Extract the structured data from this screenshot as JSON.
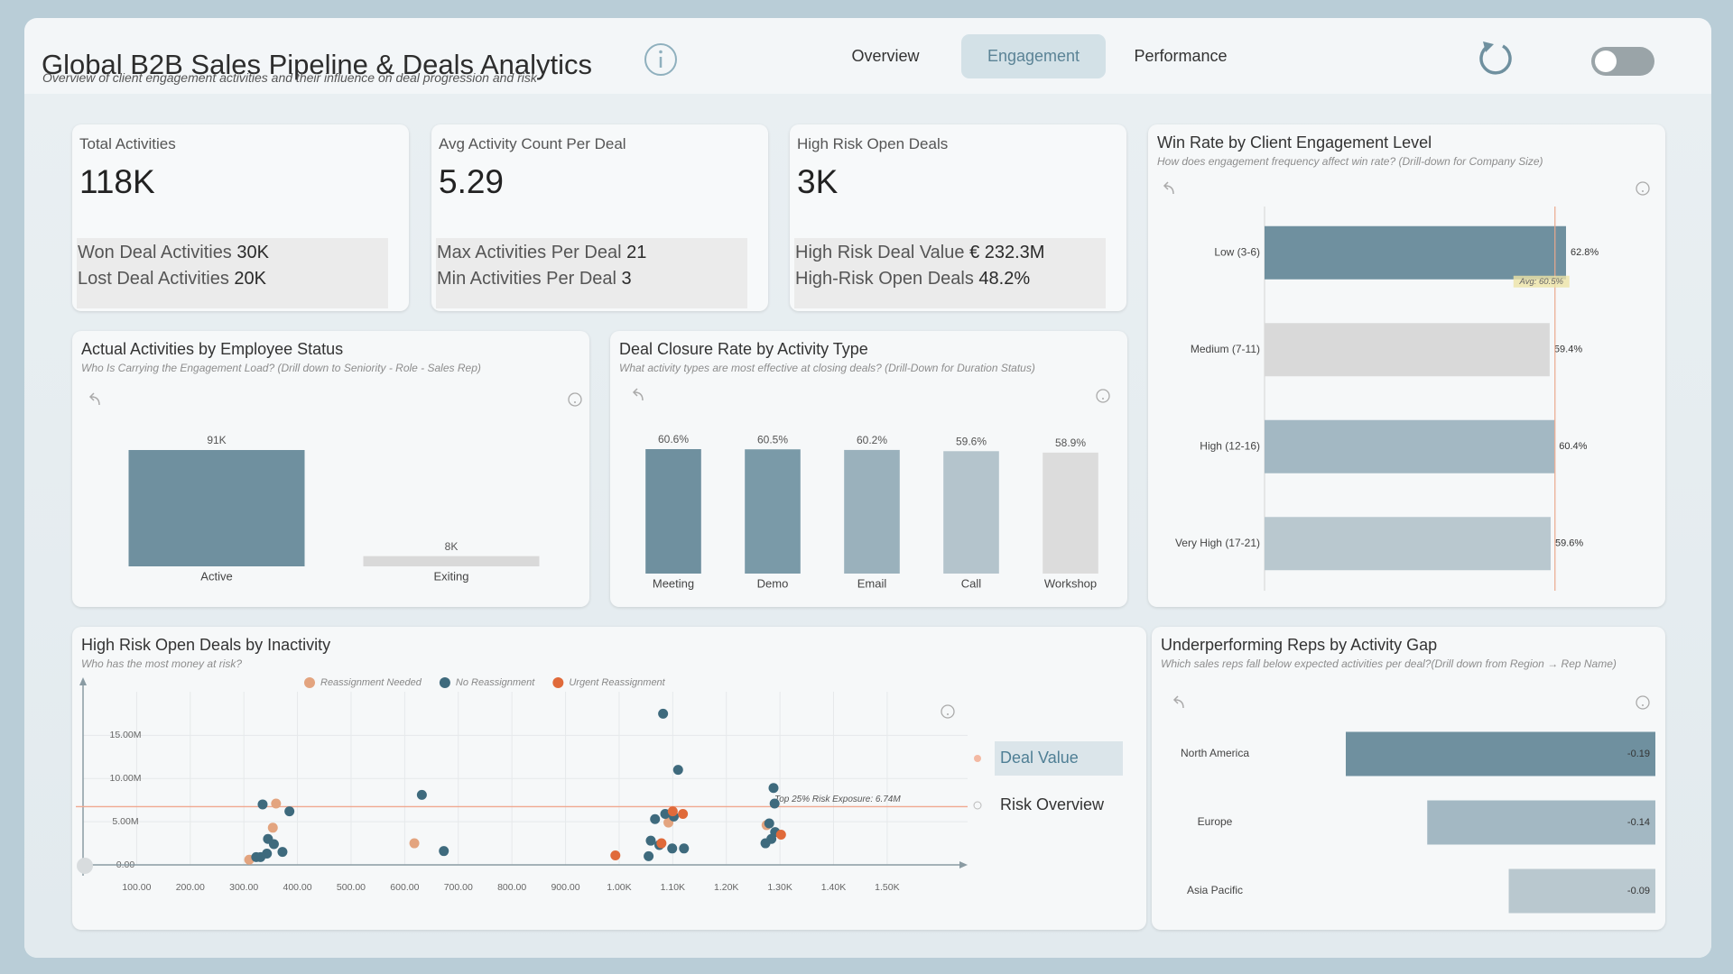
{
  "header": {
    "title": "Global B2B Sales Pipeline & Deals Analytics",
    "subtitle": "Overview of client engagement activities and their influence on deal progression and risk"
  },
  "nav": {
    "tabs": [
      "Overview",
      "Engagement",
      "Performance"
    ],
    "active": 1
  },
  "kpi_cards": [
    {
      "label": "Total Activities",
      "value": "118K",
      "details": [
        {
          "label": "Won Deal Activities",
          "value": "30K"
        },
        {
          "label": "Lost Deal Activities",
          "value": "20K"
        }
      ]
    },
    {
      "label": "Avg Activity Count Per Deal",
      "value": "5.29",
      "details": [
        {
          "label": "Max Activities Per Deal",
          "value": "21"
        },
        {
          "label": "Min Activities Per Deal",
          "value": "3"
        }
      ]
    },
    {
      "label": "High Risk Open Deals",
      "value": "3K",
      "details": [
        {
          "label": "High Risk Deal Value",
          "value": "€ 232.3M"
        },
        {
          "label": "High-Risk Open Deals",
          "value": "48.2%"
        }
      ]
    }
  ],
  "chart_data": [
    {
      "type": "bar",
      "title": "Actual Activities by Employee Status",
      "subtitle": "Who Is Carrying the Engagement Load? (Drill down to Seniority - Role - Sales Rep)",
      "categories": [
        "Active",
        "Exiting"
      ],
      "values": [
        91000,
        8000
      ],
      "value_labels": [
        "91K",
        "8K"
      ],
      "colors": [
        "#6f909f",
        "#d9d9d9"
      ]
    },
    {
      "type": "bar",
      "title": "Deal Closure Rate by Activity Type",
      "subtitle": "What activity types are most effective at closing deals? (Drill-Down for Duration Status)",
      "categories": [
        "Meeting",
        "Demo",
        "Email",
        "Call",
        "Workshop"
      ],
      "values": [
        60.6,
        60.5,
        60.2,
        59.6,
        58.9
      ],
      "value_labels": [
        "60.6%",
        "60.5%",
        "60.2%",
        "59.6%",
        "58.9%"
      ],
      "colors": [
        "#6f909f",
        "#7a9aa8",
        "#9ab1bc",
        "#b4c4cc",
        "#dcdcdc"
      ]
    },
    {
      "type": "hbar",
      "title": "Win Rate by Client Engagement Level",
      "subtitle": "How does engagement frequency affect win rate? (Drill-down for Company Size)",
      "categories": [
        "Low (3-6)",
        "Medium (7-11)",
        "High (12-16)",
        "Very High (17-21)"
      ],
      "values": [
        62.8,
        59.4,
        60.4,
        59.6
      ],
      "value_labels": [
        "62.8%",
        "59.4%",
        "60.4%",
        "59.6%"
      ],
      "colors": [
        "#6f909f",
        "#d9d9d9",
        "#a3b8c3",
        "#b9c8cf"
      ],
      "average": 60.5,
      "average_label": "Avg: 60.5%"
    },
    {
      "type": "scatter",
      "title": "High Risk Open Deals by Inactivity",
      "subtitle": "Who has the most money at risk?",
      "xlim": [
        0,
        1650
      ],
      "ylim": [
        0,
        19000000
      ],
      "grid": true,
      "xticks": [
        {
          "value": 100,
          "label": "100.00"
        },
        {
          "value": 200,
          "label": "200.00"
        },
        {
          "value": 300,
          "label": "300.00"
        },
        {
          "value": 400,
          "label": "400.00"
        },
        {
          "value": 500,
          "label": "500.00"
        },
        {
          "value": 600,
          "label": "600.00"
        },
        {
          "value": 700,
          "label": "700.00"
        },
        {
          "value": 800,
          "label": "800.00"
        },
        {
          "value": 900,
          "label": "900.00"
        },
        {
          "value": 1000,
          "label": "1.00K"
        },
        {
          "value": 1100,
          "label": "1.10K"
        },
        {
          "value": 1200,
          "label": "1.20K"
        },
        {
          "value": 1300,
          "label": "1.30K"
        },
        {
          "value": 1400,
          "label": "1.40K"
        },
        {
          "value": 1500,
          "label": "1.50K"
        }
      ],
      "yticks": [
        {
          "value": 0,
          "label": "0.00"
        },
        {
          "value": 5000000,
          "label": "5.00M"
        },
        {
          "value": 10000000,
          "label": "10.00M"
        },
        {
          "value": 15000000,
          "label": "15.00M"
        }
      ],
      "series": [
        {
          "name": "Reassignment Needed",
          "color": "#e3a47f",
          "x": [
            310,
            360,
            354,
            618,
            1092,
            1275
          ],
          "values": [
            600000,
            7100000,
            4300000,
            2500000,
            4900000,
            4600000
          ]
        },
        {
          "name": "No Reassignment",
          "color": "#3e6a7d",
          "x": [
            323,
            335,
            385,
            345,
            356,
            343,
            372,
            331,
            632,
            673,
            1082,
            1110,
            1067,
            1086,
            1059,
            1075,
            1055,
            1099,
            1121,
            1102,
            1288,
            1290,
            1280,
            1273,
            1284,
            1291
          ],
          "values": [
            900000,
            7000000,
            6200000,
            3000000,
            2400000,
            1300000,
            1500000,
            900000,
            8100000,
            1600000,
            17500000,
            11000000,
            5300000,
            5900000,
            2800000,
            2300000,
            1000000,
            1900000,
            1900000,
            5600000,
            8900000,
            7100000,
            4800000,
            2500000,
            3000000,
            3800000
          ]
        },
        {
          "name": "Urgent Reassignment",
          "color": "#e06a3a",
          "x": [
            993,
            1100,
            1119,
            1079,
            1302
          ],
          "values": [
            1100000,
            6200000,
            5900000,
            2500000,
            3500000
          ]
        }
      ],
      "reference_line": {
        "value": 6740000,
        "label": "Top 25% Risk Exposure: 6.74M"
      },
      "view_options": [
        "Deal Value",
        "Risk Overview"
      ],
      "view_selected": 0
    },
    {
      "type": "hbar",
      "title": "Underperforming Reps by Activity Gap",
      "subtitle": "Which sales reps fall below expected activities per deal?(Drill down from Region → Rep Name)",
      "categories": [
        "North America",
        "Europe",
        "Asia Pacific"
      ],
      "values": [
        -0.19,
        -0.14,
        -0.09
      ],
      "colors": [
        "#6f909f",
        "#a3b8c3",
        "#b9c8cf"
      ]
    }
  ]
}
